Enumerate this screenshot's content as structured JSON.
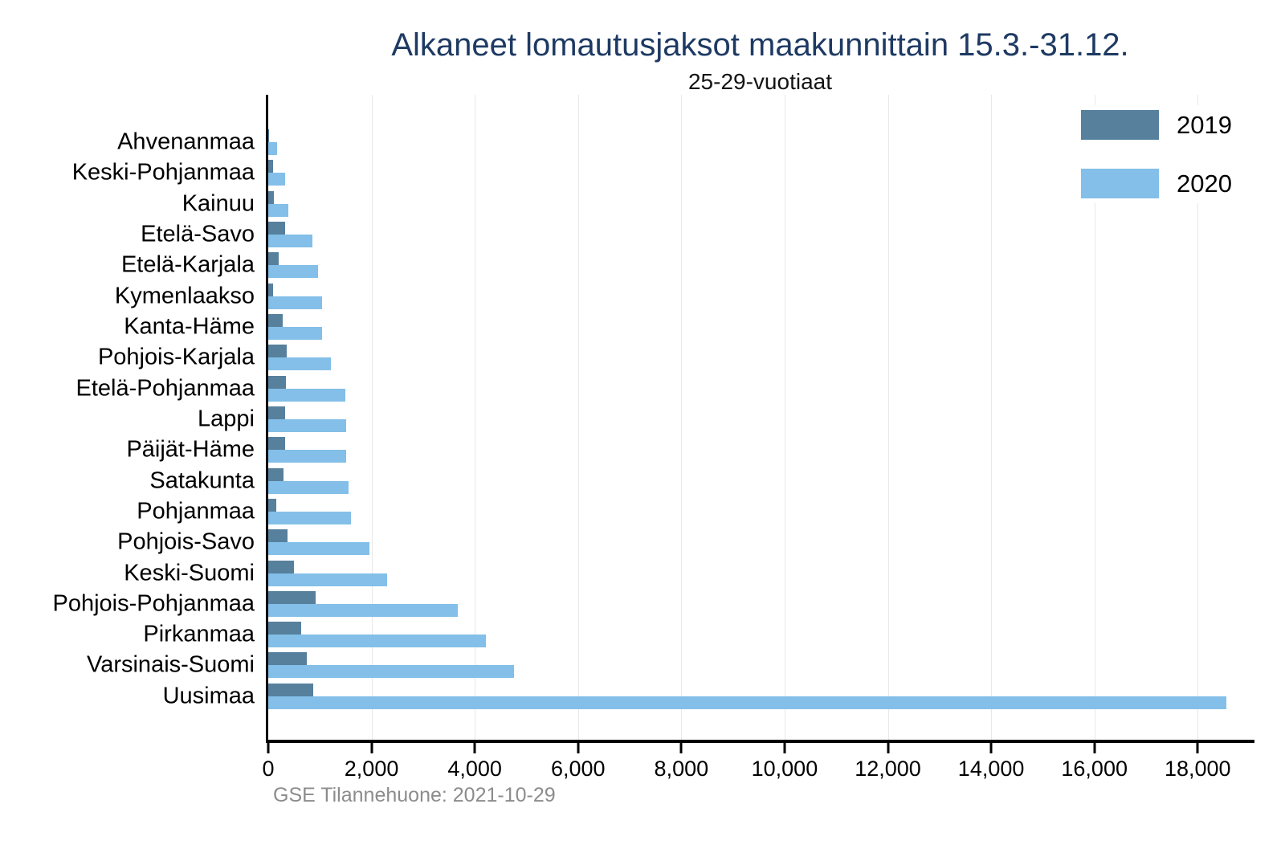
{
  "title": "Alkaneet lomautusjaksot maakunnittain 15.3.-31.12.",
  "subtitle": "25-29-vuotiaat",
  "footer": "GSE Tilannehuone: 2021-10-29",
  "legend": {
    "position": "top-right",
    "items": [
      {
        "label": "2019",
        "color": "#57809d"
      },
      {
        "label": "2020",
        "color": "#83bfe8"
      }
    ]
  },
  "colors": {
    "title": "#1e3a63",
    "axis": "#000000",
    "gridline": "#e8e8e8",
    "footer_text": "#8c8c8c",
    "series_2019": "#57809d",
    "series_2020": "#83bfe8",
    "background": "#ffffff"
  },
  "chart_data": {
    "type": "bar",
    "orientation": "horizontal",
    "title": "Alkaneet lomautusjaksot maakunnittain 15.3.-31.12.",
    "subtitle": "25-29-vuotiaat",
    "xlabel": "",
    "ylabel": "",
    "grid": "vertical",
    "legend_position": "top-right",
    "xlim": [
      0,
      19100
    ],
    "x_ticks": [
      0,
      2000,
      4000,
      6000,
      8000,
      10000,
      12000,
      14000,
      16000,
      18000
    ],
    "x_tick_labels": [
      "0",
      "2,000",
      "4,000",
      "6,000",
      "8,000",
      "10,000",
      "12,000",
      "14,000",
      "16,000",
      "18,000"
    ],
    "categories": [
      "Ahvenanmaa",
      "Keski-Pohjanmaa",
      "Kainuu",
      "Etelä-Savo",
      "Etelä-Karjala",
      "Kymenlaakso",
      "Kanta-Häme",
      "Pohjois-Karjala",
      "Etelä-Pohjanmaa",
      "Lappi",
      "Päijät-Häme",
      "Satakunta",
      "Pohjanmaa",
      "Pohjois-Savo",
      "Keski-Suomi",
      "Pohjois-Pohjanmaa",
      "Pirkanmaa",
      "Varsinais-Suomi",
      "Uusimaa"
    ],
    "series": [
      {
        "name": "2019",
        "color": "#57809d",
        "values": [
          10,
          90,
          110,
          320,
          195,
          100,
          280,
          365,
          340,
          320,
          330,
          300,
          150,
          375,
          505,
          925,
          645,
          740,
          870
        ]
      },
      {
        "name": "2020",
        "color": "#83bfe8",
        "values": [
          165,
          330,
          390,
          860,
          965,
          1035,
          1035,
          1220,
          1490,
          1515,
          1515,
          1550,
          1600,
          1960,
          2300,
          3670,
          4210,
          4755,
          18550
        ]
      }
    ]
  }
}
